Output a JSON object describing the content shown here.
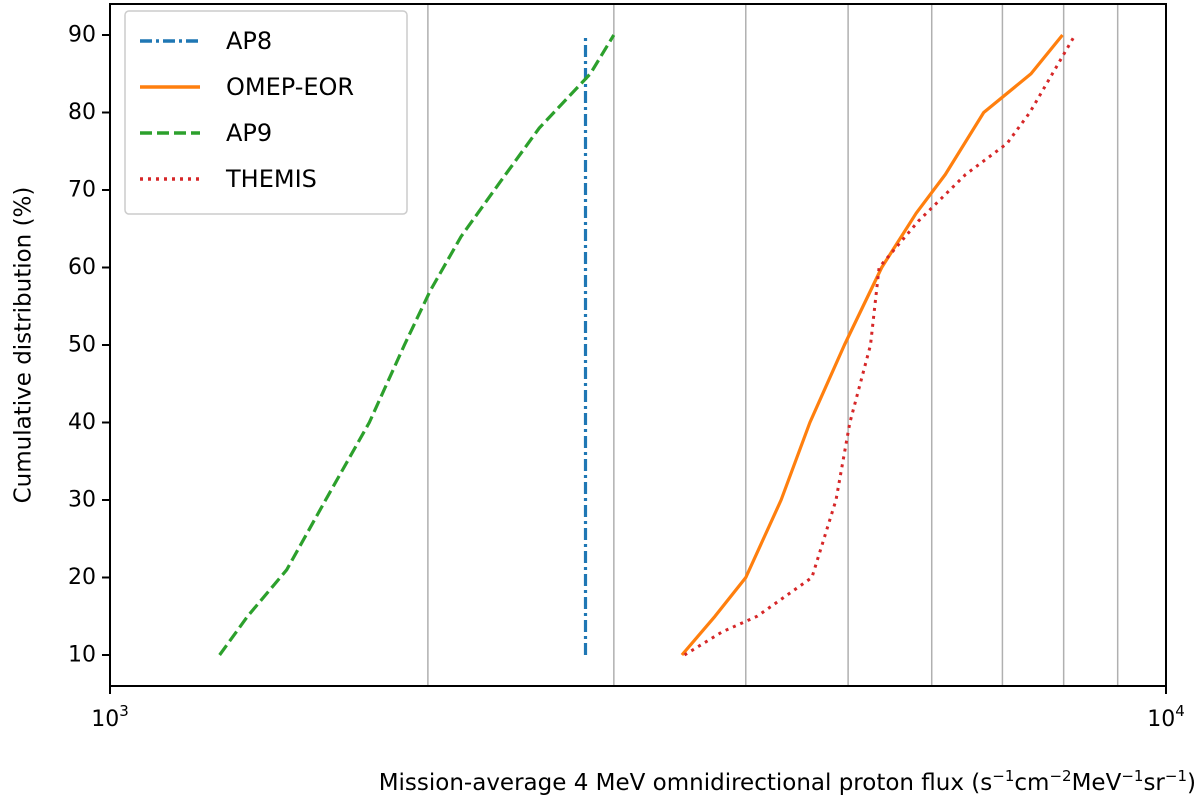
{
  "chart_data": {
    "type": "line",
    "x_scale": "log",
    "xlim": [
      1000,
      10000
    ],
    "ylim": [
      6,
      94
    ],
    "yticks": [
      10,
      20,
      30,
      40,
      50,
      60,
      70,
      80,
      90
    ],
    "x_major_ticks": [
      {
        "value": 1000,
        "base": "10",
        "exp": "3"
      },
      {
        "value": 10000,
        "base": "10",
        "exp": "4"
      }
    ],
    "x_grid_values": [
      2000,
      3000,
      4000,
      5000,
      6000,
      7000,
      8000,
      9000
    ],
    "xlabel": {
      "main": "Mission-average 4 MeV omnidirectional proton flux (",
      "u1": "s",
      "e1": "−1",
      "u2": "cm",
      "e2": "−2",
      "u3": "MeV",
      "e3": "−1",
      "u4": "sr",
      "e4": "−1",
      "close": ")"
    },
    "ylabel": "Cumulative distribution (%)",
    "legend_position": "top-left",
    "series": [
      {
        "name": "AP8",
        "color": "#1f77b4",
        "style": "dashdot",
        "x": [
          2820,
          2820
        ],
        "y": [
          10,
          90
        ]
      },
      {
        "name": "OMEP-EOR",
        "color": "#ff7f0e",
        "style": "solid",
        "x": [
          3480,
          3740,
          4000,
          4320,
          4600,
          4960,
          5380,
          5800,
          6180,
          6720,
          7450,
          7980
        ],
        "y": [
          10,
          15,
          20,
          30,
          40,
          50,
          60,
          67,
          72,
          80,
          85,
          90
        ]
      },
      {
        "name": "AP9",
        "color": "#2ca02c",
        "style": "dashed",
        "x": [
          1270,
          1350,
          1470,
          1600,
          1760,
          1900,
          2010,
          2150,
          2340,
          2550,
          2850,
          3000
        ],
        "y": [
          10,
          15,
          21,
          30,
          40,
          50,
          57,
          64,
          71,
          78,
          85,
          90
        ]
      },
      {
        "name": "THEMIS",
        "color": "#d62728",
        "style": "dotted",
        "x": [
          3500,
          3800,
          4100,
          4620,
          4870,
          5020,
          5250,
          5350,
          5830,
          6460,
          7070,
          7430,
          8200
        ],
        "y": [
          10,
          13,
          15,
          20,
          30,
          40,
          50,
          60,
          66,
          72,
          76,
          80,
          90
        ]
      }
    ]
  }
}
